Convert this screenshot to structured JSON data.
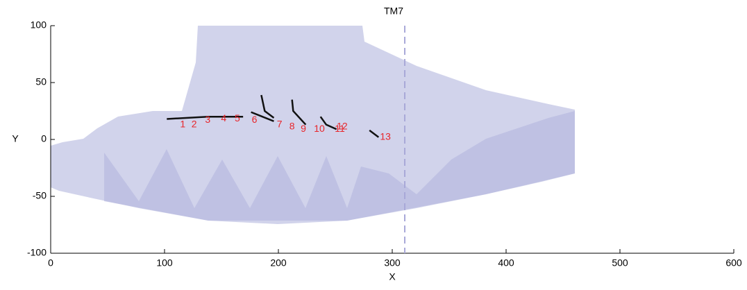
{
  "chart_data": {
    "type": "scatter",
    "title": "TM7",
    "x_label": "X",
    "y_label": "Y",
    "xlim": [
      0,
      600
    ],
    "xticks": [
      0,
      100,
      200,
      300,
      400,
      500,
      600
    ],
    "ylim": [
      -100,
      100
    ],
    "yticks": [
      -100,
      -50,
      0,
      50,
      100
    ],
    "grid": false,
    "annotation_color": "#e8252a",
    "annotations": [
      {
        "text": "1",
        "x": 116,
        "y": 13
      },
      {
        "text": "2",
        "x": 126,
        "y": 13
      },
      {
        "text": "3",
        "x": 138,
        "y": 17
      },
      {
        "text": "4",
        "x": 152,
        "y": 18
      },
      {
        "text": "5",
        "x": 164,
        "y": 18
      },
      {
        "text": "6",
        "x": 179,
        "y": 17
      },
      {
        "text": "7",
        "x": 201,
        "y": 13
      },
      {
        "text": "8",
        "x": 212,
        "y": 11
      },
      {
        "text": "9",
        "x": 222,
        "y": 9
      },
      {
        "text": "10",
        "x": 236,
        "y": 9
      },
      {
        "text": "11",
        "x": 254,
        "y": 9
      },
      {
        "text": "12",
        "x": 256,
        "y": 11
      },
      {
        "text": "13",
        "x": 294,
        "y": 2
      }
    ],
    "track_color": "#111111",
    "tracks": [
      {
        "x": [
          102,
          120,
          138,
          155,
          169
        ],
        "y": [
          18,
          19,
          20,
          20,
          20
        ]
      },
      {
        "x": [
          176,
          186,
          196
        ],
        "y": [
          24,
          20,
          16
        ]
      },
      {
        "x": [
          185,
          188,
          196
        ],
        "y": [
          39,
          25,
          19
        ]
      },
      {
        "x": [
          212,
          213,
          224
        ],
        "y": [
          35,
          25,
          13
        ]
      },
      {
        "x": [
          237,
          242,
          251
        ],
        "y": [
          20,
          13,
          9
        ]
      },
      {
        "x": [
          280,
          288
        ],
        "y": [
          8,
          2
        ]
      }
    ],
    "vline": 311
  }
}
